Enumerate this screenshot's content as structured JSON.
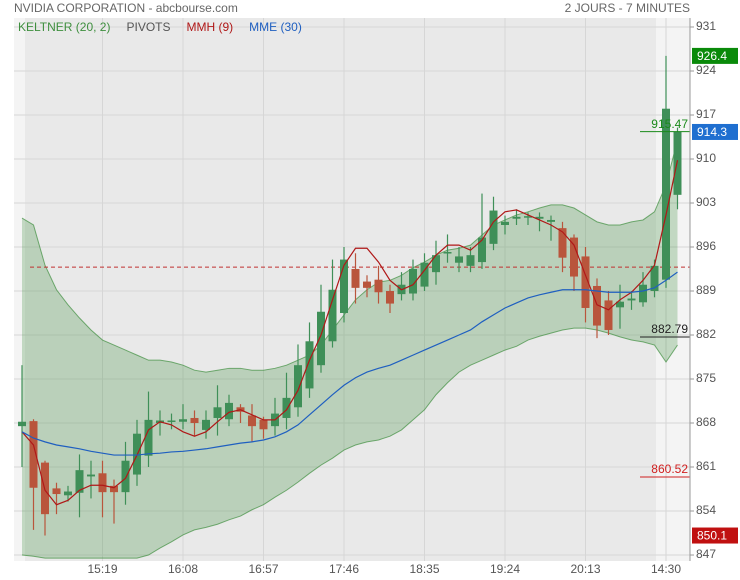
{
  "chart_data": {
    "type": "candlestick",
    "title": "NVIDIA CORPORATION - abcbourse.com",
    "subtitle": "2 JOURS - 7 MINUTES",
    "categories": [
      null,
      null,
      null,
      null,
      null,
      null,
      null,
      "15:19",
      null,
      null,
      null,
      null,
      null,
      null,
      "16:08",
      null,
      null,
      null,
      null,
      null,
      null,
      "16:57",
      null,
      null,
      null,
      null,
      null,
      null,
      "17:46",
      null,
      null,
      null,
      null,
      null,
      null,
      "18:35",
      null,
      null,
      null,
      null,
      null,
      null,
      "19:24",
      null,
      null,
      null,
      null,
      null,
      null,
      "20:13",
      null,
      null,
      null,
      null,
      null,
      null,
      "14:30",
      null
    ],
    "open": [
      867.5,
      868.3,
      861.7,
      857.6,
      856.5,
      856.9,
      859.5,
      860.0,
      858.0,
      857.0,
      859.8,
      862.8,
      868.0,
      868.3,
      868.2,
      868.8,
      866.9,
      868.8,
      868.6,
      870.5,
      869.2,
      868.5,
      867.5,
      868.8,
      870.5,
      873.5,
      877.2,
      881.0,
      885.5,
      892.5,
      890.5,
      890.8,
      889.0,
      888.5,
      888.6,
      889.7,
      892.0,
      895.0,
      893.5,
      893.0,
      893.6,
      896.5,
      899.5,
      900.5,
      900.8,
      900.5,
      900.0,
      899.0,
      897.5,
      894.5,
      889.8,
      887.5,
      886.4,
      887.5,
      887.2,
      889.0,
      890.8,
      904.3
    ],
    "high": [
      877.2,
      868.6,
      862.0,
      858.5,
      858.0,
      863.0,
      862.0,
      862.0,
      859.0,
      865.0,
      868.5,
      873.0,
      870.0,
      869.5,
      871.0,
      870.0,
      870.0,
      874.0,
      872.5,
      871.0,
      871.0,
      869.0,
      872.0,
      876.0,
      880.5,
      884.0,
      890.0,
      894.0,
      896.0,
      895.0,
      891.5,
      893.0,
      890.0,
      892.0,
      894.0,
      895.0,
      897.0,
      898.0,
      896.0,
      896.0,
      904.5,
      904.0,
      901.0,
      902.0,
      901.5,
      901.5,
      901.0,
      900.0,
      898.0,
      896.0,
      891.0,
      889.0,
      890.0,
      889.0,
      892.0,
      894.0,
      926.4,
      915.0
    ],
    "low": [
      861.0,
      851.0,
      850.1,
      853.5,
      855.5,
      853.0,
      856.0,
      853.0,
      852.0,
      855.0,
      858.0,
      861.0,
      866.0,
      867.0,
      867.0,
      866.0,
      865.5,
      866.0,
      867.5,
      868.0,
      865.0,
      865.5,
      866.0,
      867.0,
      869.0,
      872.0,
      876.0,
      880.0,
      884.0,
      887.0,
      888.0,
      887.0,
      885.5,
      887.5,
      887.5,
      889.0,
      890.0,
      893.5,
      892.0,
      892.0,
      892.5,
      895.5,
      898.0,
      899.5,
      899.5,
      898.5,
      897.0,
      892.0,
      889.0,
      884.0,
      881.5,
      882.0,
      883.0,
      886.0,
      886.5,
      888.0,
      889.5,
      902.0
    ],
    "close": [
      868.2,
      857.7,
      853.5,
      856.7,
      857.1,
      860.5,
      859.8,
      857.0,
      857.0,
      862.0,
      866.3,
      868.5,
      868.4,
      868.4,
      868.6,
      868.0,
      868.5,
      870.5,
      871.2,
      869.8,
      867.5,
      867.0,
      869.5,
      872.0,
      877.2,
      881.0,
      885.7,
      889.2,
      894.0,
      889.5,
      889.5,
      888.8,
      887.0,
      890.0,
      892.5,
      893.5,
      894.7,
      895.2,
      894.5,
      894.7,
      897.5,
      901.8,
      900.0,
      900.8,
      900.9,
      900.8,
      900.3,
      894.3,
      891.3,
      886.3,
      883.5,
      882.8,
      887.3,
      887.8,
      890.0,
      893.0,
      918.0,
      914.3
    ],
    "up_color": "#3f8f58",
    "down_color": "#b9553c",
    "keltner": {
      "name": "KELTNER (20, 2)",
      "color": "#3f8f3f",
      "upper": [
        900.6,
        899.5,
        893.1,
        889.2,
        886.8,
        884.7,
        882.8,
        881.2,
        880.4,
        879.6,
        878.8,
        878.0,
        878.0,
        877.7,
        877.2,
        876.4,
        876.1,
        876.4,
        876.7,
        876.7,
        876.4,
        876.4,
        876.7,
        877.2,
        878.0,
        878.8,
        880.4,
        882.8,
        885.2,
        887.6,
        889.2,
        890.4,
        890.7,
        891.5,
        892.7,
        893.6,
        894.7,
        895.5,
        895.8,
        896.3,
        897.9,
        899.5,
        900.3,
        901.1,
        901.6,
        902.2,
        902.7,
        902.7,
        902.2,
        901.1,
        900.0,
        899.5,
        899.5,
        900.0,
        900.3,
        901.6,
        905.9,
        913.0
      ],
      "lower": [
        847.0,
        846.8,
        846.5,
        846.5,
        846.5,
        846.5,
        846.5,
        846.5,
        846.5,
        846.5,
        846.5,
        847.0,
        848.1,
        849.1,
        850.2,
        851.0,
        851.4,
        851.9,
        852.6,
        853.2,
        854.2,
        855.0,
        856.2,
        857.3,
        858.6,
        860.0,
        861.3,
        862.4,
        863.7,
        864.5,
        865.0,
        865.3,
        865.9,
        866.9,
        868.5,
        870.1,
        872.5,
        874.4,
        876.1,
        877.2,
        878.0,
        878.8,
        879.6,
        880.2,
        881.2,
        881.8,
        882.3,
        882.8,
        883.1,
        883.1,
        882.8,
        882.3,
        881.7,
        881.2,
        880.9,
        880.4,
        877.7,
        880.4
      ]
    },
    "series": [
      {
        "name": "MMH (9)",
        "color": "#b01818",
        "values": [
          866.6,
          864.5,
          857.3,
          855.0,
          855.7,
          857.3,
          858.1,
          858.1,
          857.7,
          859.2,
          862.9,
          866.9,
          868.2,
          867.7,
          866.6,
          865.9,
          866.6,
          868.2,
          869.7,
          870.1,
          869.3,
          868.5,
          868.5,
          870.1,
          873.2,
          878.0,
          882.0,
          887.6,
          893.1,
          895.8,
          895.8,
          893.6,
          890.7,
          889.2,
          890.0,
          892.3,
          894.7,
          896.3,
          896.3,
          895.5,
          897.1,
          900.0,
          901.6,
          901.9,
          901.1,
          900.3,
          899.5,
          898.4,
          896.3,
          891.5,
          886.8,
          886.0,
          887.6,
          888.8,
          890.7,
          893.1,
          901.1,
          909.8
        ]
      },
      {
        "name": "MME (30)",
        "color": "#1f5fc0",
        "values": [
          866.6,
          865.6,
          865.0,
          864.5,
          864.2,
          863.9,
          863.5,
          863.2,
          862.9,
          862.9,
          862.9,
          863.1,
          863.2,
          863.4,
          863.5,
          863.7,
          863.9,
          864.2,
          864.5,
          864.8,
          865.0,
          865.3,
          865.8,
          866.6,
          867.7,
          869.3,
          870.9,
          872.5,
          874.0,
          875.2,
          876.1,
          876.7,
          877.2,
          878.0,
          878.8,
          879.6,
          880.4,
          881.2,
          882.0,
          882.8,
          884.1,
          885.2,
          886.3,
          887.1,
          887.9,
          888.4,
          888.8,
          889.2,
          889.2,
          889.2,
          889.0,
          888.8,
          888.8,
          888.8,
          889.0,
          889.5,
          890.7,
          892.0
        ]
      }
    ],
    "pivots": {
      "name": "PIVOTS",
      "levels": [
        915.47,
        882.79,
        860.52
      ],
      "colors": [
        "#1a8a1a",
        "#222222",
        "#d02020"
      ]
    },
    "reference_line": 892.8,
    "reference_color": "#c03030",
    "markers": [
      {
        "value": 926.4,
        "color": "#0a8a0a"
      },
      {
        "value": 914.3,
        "color": "#1f6fd0"
      },
      {
        "value": 850.1,
        "color": "#c01010"
      }
    ],
    "ylim": [
      846,
      932
    ],
    "yticks": [
      931,
      924,
      917,
      910,
      903,
      896,
      889,
      882,
      875,
      868,
      861,
      854,
      847
    ],
    "grid": true
  }
}
